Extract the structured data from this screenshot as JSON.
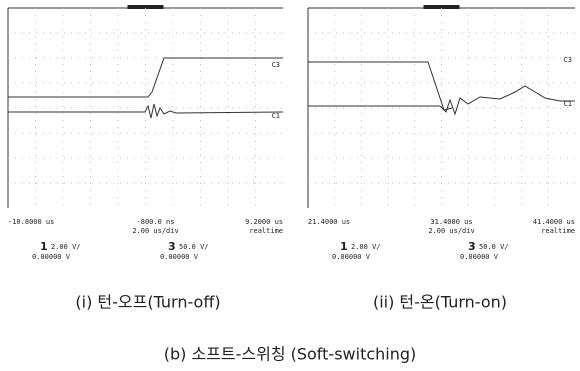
{
  "panels": [
    {
      "caption": "(i) 턴-오프(Turn-off)",
      "time_labels": [
        "-10.8000 us",
        "-800.0 ns",
        "9.2000 us"
      ],
      "timebase": "2.00 us/div",
      "mode": "realtime",
      "channels": [
        {
          "id": "1",
          "scale": "2.00 V/",
          "offset": "0.00000 V"
        },
        {
          "id": "3",
          "scale": "50.0 V/",
          "offset": "0.00000 V"
        }
      ],
      "trace_labels": [
        "C3",
        "C1"
      ]
    },
    {
      "caption": "(ii) 턴-온(Turn-on)",
      "time_labels": [
        "21.4000 us",
        "31.4000 us",
        "41.4000 us"
      ],
      "timebase": "2.00 us/div",
      "mode": "realtime",
      "channels": [
        {
          "id": "1",
          "scale": "2.00 V/",
          "offset": "0.00000 V"
        },
        {
          "id": "3",
          "scale": "50.0 V/",
          "offset": "0.00000 V"
        }
      ],
      "trace_labels": [
        "C3",
        "C1"
      ]
    }
  ],
  "caption": "(b) 소프트-스위칭 (Soft-switching)"
}
